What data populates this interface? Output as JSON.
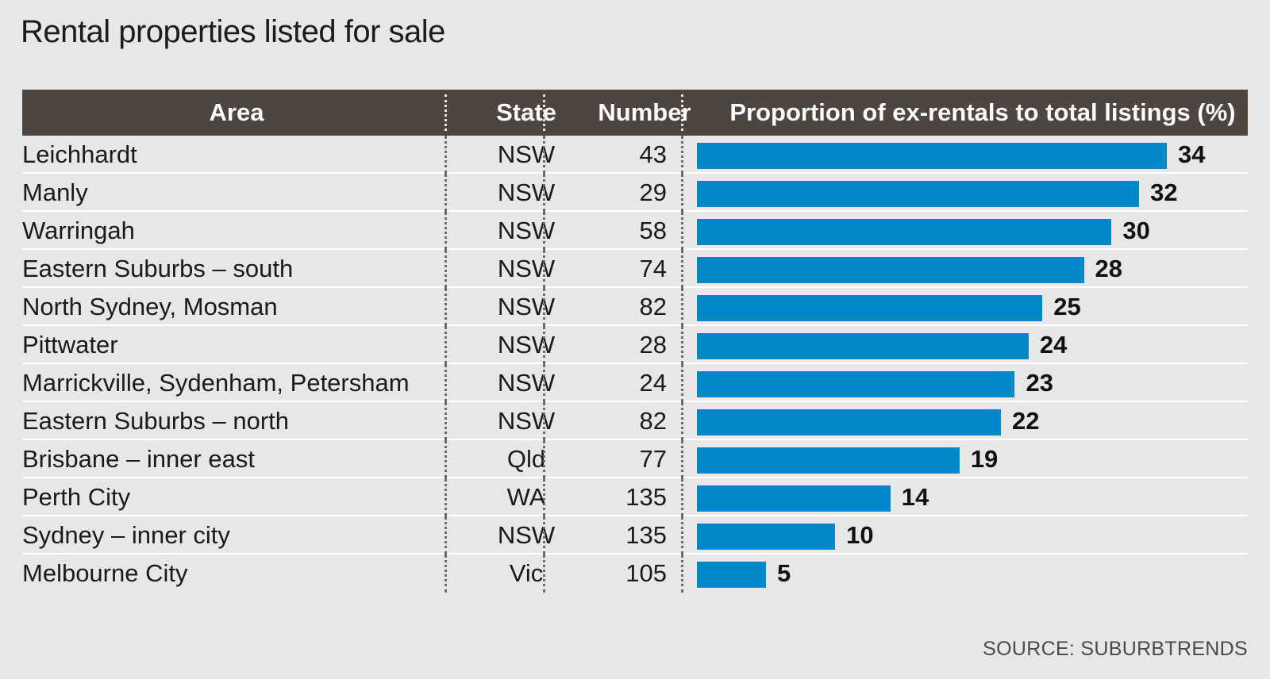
{
  "title": "Rental properties listed for sale",
  "source": "SOURCE: SUBURBTRENDS",
  "columns": {
    "area": "Area",
    "state": "State",
    "number": "Number",
    "proportion": "Proportion of ex-rentals to total listings (%)"
  },
  "chart_data": {
    "type": "bar",
    "orientation": "horizontal",
    "title": "Rental properties listed for sale",
    "xlim": [
      0,
      34
    ],
    "categories": [
      "Leichhardt",
      "Manly",
      "Warringah",
      "Eastern Suburbs – south",
      "North Sydney, Mosman",
      "Pittwater",
      "Marrickville, Sydenham, Petersham",
      "Eastern Suburbs – north",
      "Brisbane – inner east",
      "Perth City",
      "Sydney – inner city",
      "Melbourne City"
    ],
    "rows": [
      {
        "area": "Leichhardt",
        "state": "NSW",
        "number": "43",
        "value": 34
      },
      {
        "area": "Manly",
        "state": "NSW",
        "number": "29",
        "value": 32
      },
      {
        "area": "Warringah",
        "state": "NSW",
        "number": "58",
        "value": 30
      },
      {
        "area": "Eastern Suburbs – south",
        "state": "NSW",
        "number": "74",
        "value": 28
      },
      {
        "area": "North Sydney, Mosman",
        "state": "NSW",
        "number": "82",
        "value": 25
      },
      {
        "area": "Pittwater",
        "state": "NSW",
        "number": "28",
        "value": 24
      },
      {
        "area": "Marrickville, Sydenham, Petersham",
        "state": "NSW",
        "number": "24",
        "value": 23
      },
      {
        "area": "Eastern Suburbs – north",
        "state": "NSW",
        "number": "82",
        "value": 22
      },
      {
        "area": "Brisbane – inner east",
        "state": "Qld",
        "number": "77",
        "value": 19
      },
      {
        "area": "Perth City",
        "state": "WA",
        "number": "135",
        "value": 14
      },
      {
        "area": "Sydney – inner city",
        "state": "NSW",
        "number": "135",
        "value": 10
      },
      {
        "area": "Melbourne City",
        "state": "Vic",
        "number": "105",
        "value": 5
      }
    ],
    "bar_color": "#0288c9",
    "header_color": "#4f4540"
  }
}
